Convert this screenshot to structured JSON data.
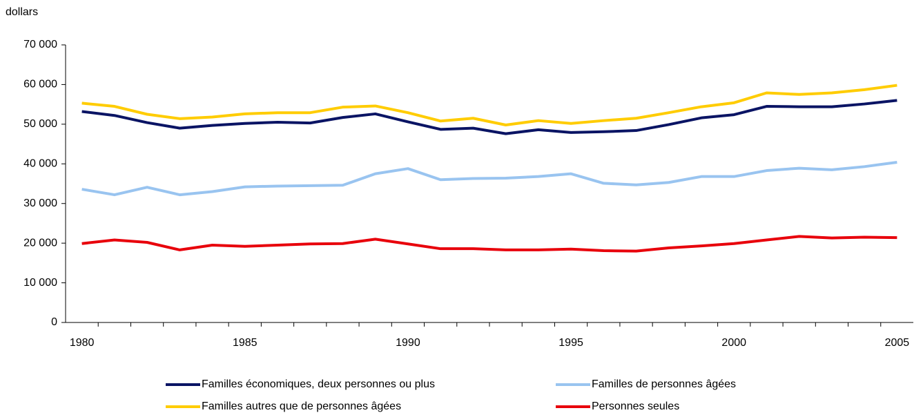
{
  "chart_data": {
    "type": "line",
    "y_label": "dollars",
    "categories": [
      "1980",
      null,
      null,
      null,
      null,
      "1985",
      null,
      null,
      null,
      null,
      "1990",
      null,
      null,
      null,
      null,
      "1995",
      null,
      null,
      null,
      null,
      "2000",
      null,
      null,
      null,
      null,
      "2005"
    ],
    "series": [
      {
        "name": "Familles économiques, deux personnes ou plus",
        "color": "#0a1464",
        "values": [
          53200,
          52200,
          50400,
          49000,
          49700,
          50200,
          50500,
          50300,
          51700,
          52600,
          50600,
          48700,
          49000,
          47600,
          48600,
          47900,
          48100,
          48400,
          49900,
          51600,
          52400,
          54500,
          54400,
          54400,
          55100,
          56000
        ]
      },
      {
        "name": "Familles de personnes âgées",
        "color": "#99c4f0",
        "values": [
          33600,
          32200,
          34100,
          32200,
          33000,
          34200,
          34400,
          34500,
          34600,
          37500,
          38800,
          36000,
          36300,
          36400,
          36800,
          37500,
          35100,
          34700,
          35300,
          36800,
          36800,
          38300,
          38900,
          38500,
          39300,
          40400
        ]
      },
      {
        "name": "Familles autres que de personnes âgées",
        "color": "#ffcc00",
        "values": [
          55300,
          54500,
          52500,
          51400,
          51800,
          52600,
          52900,
          52900,
          54300,
          54600,
          52900,
          50800,
          51500,
          49800,
          50900,
          50200,
          50900,
          51500,
          52900,
          54400,
          55400,
          57900,
          57500,
          57900,
          58700,
          59800
        ]
      },
      {
        "name": "Personnes seules",
        "color": "#e8000b",
        "values": [
          19900,
          20800,
          20200,
          18300,
          19500,
          19200,
          19500,
          19800,
          19900,
          21000,
          19800,
          18600,
          18600,
          18300,
          18300,
          18500,
          18100,
          18000,
          18800,
          19300,
          19900,
          20800,
          21700,
          21300,
          21500,
          21400
        ]
      }
    ],
    "ylim": [
      0,
      70000
    ],
    "yticks": [
      0,
      {
        "value": 10000,
        "label": "10 000"
      },
      {
        "value": 20000,
        "label": "20 000"
      },
      {
        "value": 30000,
        "label": "30 000"
      },
      {
        "value": 40000,
        "label": "40 000"
      },
      {
        "value": 50000,
        "label": "50 000"
      },
      {
        "value": 60000,
        "label": "60 000"
      },
      {
        "value": 70000,
        "label": "70 000"
      }
    ],
    "grid": false
  }
}
